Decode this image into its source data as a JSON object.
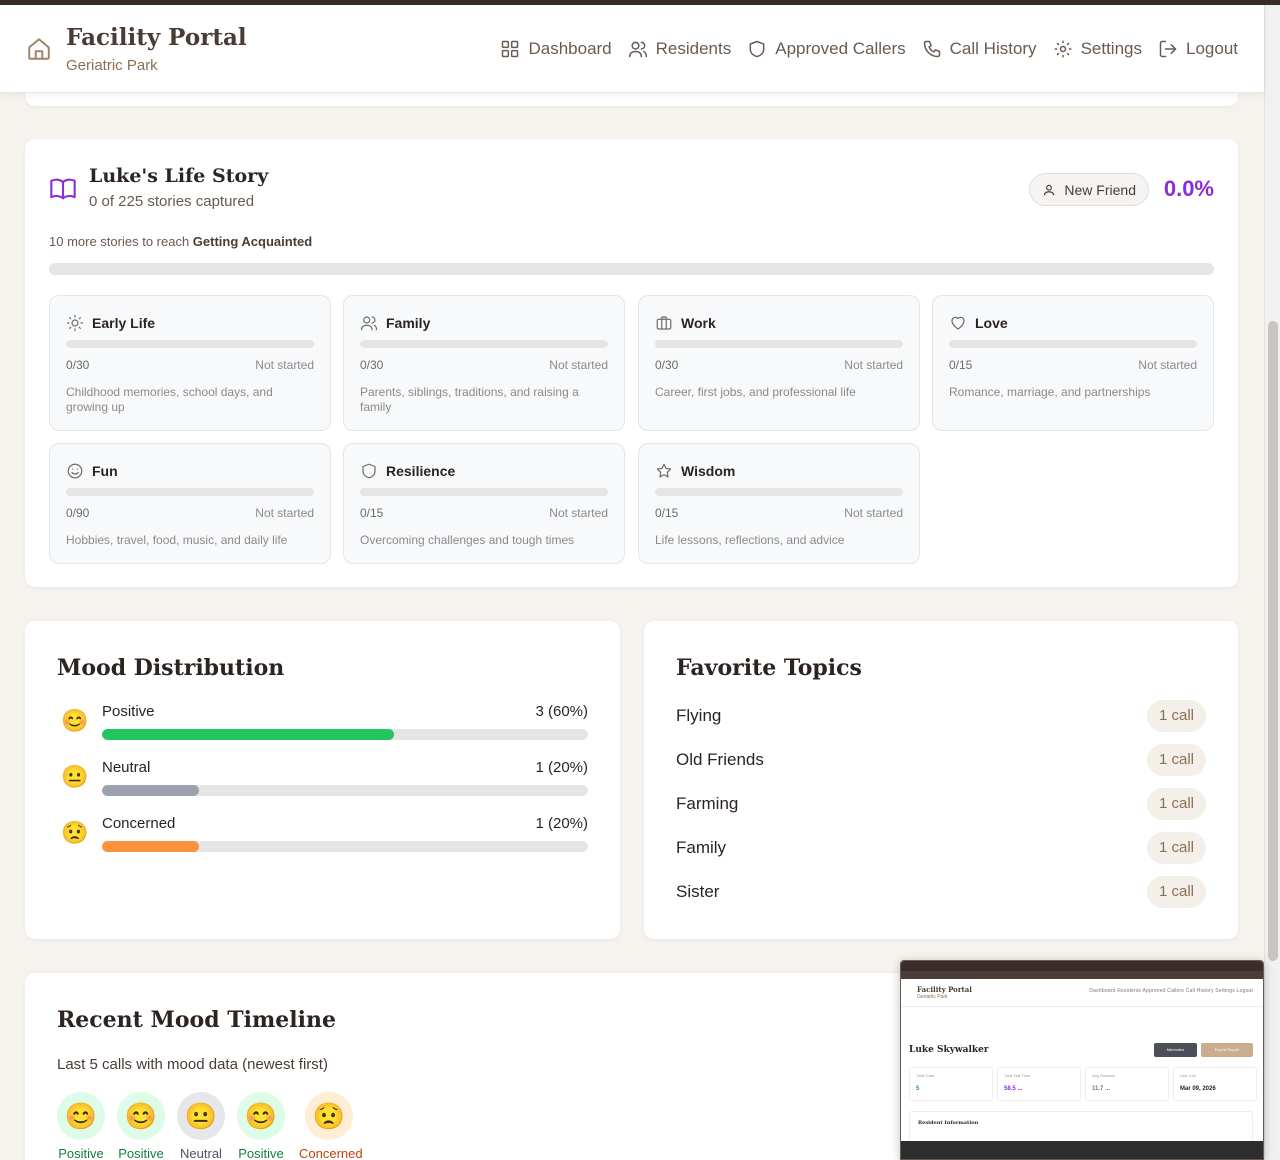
{
  "header": {
    "title": "Facility Portal",
    "subtitle": "Geriatric Park",
    "nav": [
      {
        "label": "Dashboard",
        "icon": "grid-icon"
      },
      {
        "label": "Residents",
        "icon": "users-icon"
      },
      {
        "label": "Approved Callers",
        "icon": "shield-icon"
      },
      {
        "label": "Call History",
        "icon": "phone-icon"
      },
      {
        "label": "Settings",
        "icon": "gear-icon"
      },
      {
        "label": "Logout",
        "icon": "logout-icon"
      }
    ]
  },
  "life_story": {
    "title": "Luke's Life Story",
    "subtitle": "0 of 225 stories captured",
    "badge": "New Friend",
    "percent": "0.0%",
    "hint_prefix": "10 more stories to reach ",
    "hint_target": "Getting Acquainted",
    "progress": 0,
    "categories": [
      {
        "name": "Early Life",
        "icon": "sun-icon",
        "count": "0/30",
        "status": "Not started",
        "desc": "Childhood memories, school days, and growing up"
      },
      {
        "name": "Family",
        "icon": "users-icon",
        "count": "0/30",
        "status": "Not started",
        "desc": "Parents, siblings, traditions, and raising a family"
      },
      {
        "name": "Work",
        "icon": "briefcase-icon",
        "count": "0/30",
        "status": "Not started",
        "desc": "Career, first jobs, and professional life"
      },
      {
        "name": "Love",
        "icon": "heart-icon",
        "count": "0/15",
        "status": "Not started",
        "desc": "Romance, marriage, and partnerships"
      },
      {
        "name": "Fun",
        "icon": "smile-icon",
        "count": "0/90",
        "status": "Not started",
        "desc": "Hobbies, travel, food, music, and daily life"
      },
      {
        "name": "Resilience",
        "icon": "shield-icon",
        "count": "0/15",
        "status": "Not started",
        "desc": "Overcoming challenges and tough times"
      },
      {
        "name": "Wisdom",
        "icon": "star-icon",
        "count": "0/15",
        "status": "Not started",
        "desc": "Life lessons, reflections, and advice"
      }
    ]
  },
  "mood_distribution": {
    "title": "Mood Distribution",
    "rows": [
      {
        "label": "Positive",
        "value": "3 (60%)",
        "fraction": 0.6,
        "color": "#22c55e",
        "emoji": "😊"
      },
      {
        "label": "Neutral",
        "value": "1 (20%)",
        "fraction": 0.2,
        "color": "#9ca3af",
        "emoji": "😐"
      },
      {
        "label": "Concerned",
        "value": "1 (20%)",
        "fraction": 0.2,
        "color": "#fb923c",
        "emoji": "😟"
      }
    ]
  },
  "favorite_topics": {
    "title": "Favorite Topics",
    "items": [
      {
        "name": "Flying",
        "count": "1 call"
      },
      {
        "name": "Old Friends",
        "count": "1 call"
      },
      {
        "name": "Farming",
        "count": "1 call"
      },
      {
        "name": "Family",
        "count": "1 call"
      },
      {
        "name": "Sister",
        "count": "1 call"
      }
    ]
  },
  "timeline": {
    "title": "Recent Mood Timeline",
    "subtitle": "Last 5 calls with mood data (newest first)",
    "items": [
      {
        "label": "Positive",
        "emoji": "😊",
        "bg": "#dcfce7",
        "color": "#15803d"
      },
      {
        "label": "Positive",
        "emoji": "😊",
        "bg": "#dcfce7",
        "color": "#15803d"
      },
      {
        "label": "Neutral",
        "emoji": "😐",
        "bg": "#e5e7eb",
        "color": "#4b5563"
      },
      {
        "label": "Positive",
        "emoji": "😊",
        "bg": "#dcfce7",
        "color": "#15803d"
      },
      {
        "label": "Concerned",
        "emoji": "😟",
        "bg": "#ffedd5",
        "color": "#c2410c"
      }
    ]
  },
  "thumbnail": {
    "brand": "Facility Portal",
    "brand_sub": "Geriatric Park",
    "nav": "Dashboard   Residents   Approved Callers   Call History   Settings   Logout",
    "name": "Luke Skywalker",
    "btn_memories": "Memories",
    "btn_export": "Export Report",
    "stats": [
      {
        "label": "Total Calls",
        "value": "5",
        "color": "#16a34a"
      },
      {
        "label": "Total Talk Time",
        "value": "58.5 ...",
        "color": "#8b2ed8"
      },
      {
        "label": "Avg Duration",
        "value": "11.7 ...",
        "color": "#8b6f55"
      },
      {
        "label": "Last Call",
        "value": "Mar 09, 2026",
        "color": "#2b2420"
      }
    ],
    "info_title": "Resident Information"
  }
}
